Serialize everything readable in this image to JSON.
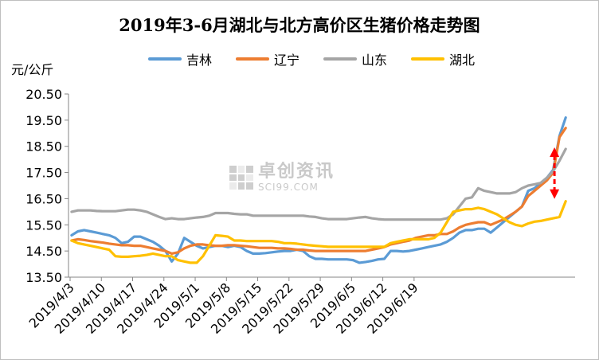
{
  "chart_data": {
    "type": "line",
    "title": "2019年3-6月湖北与北方高价区生猪价格走势图",
    "ylabel": "元/公斤",
    "ylim": [
      13.5,
      20.5
    ],
    "yticks": [
      "20.50",
      "19.50",
      "18.50",
      "17.50",
      "16.50",
      "15.50",
      "14.50",
      "13.50"
    ],
    "xticks": [
      "2019/4/3",
      "2019/4/10",
      "2019/4/17",
      "2019/4/24",
      "2019/5/1",
      "2019/5/8",
      "2019/5/15",
      "2019/5/22",
      "2019/5/29",
      "2019/6/5",
      "2019/6/12",
      "2019/6/19"
    ],
    "x": [
      0,
      1,
      2,
      3,
      4,
      5,
      6,
      7,
      8,
      9,
      10,
      11,
      12,
      13,
      14,
      15,
      16,
      17,
      18,
      19,
      20,
      21,
      22,
      23,
      24,
      25,
      26,
      27,
      28,
      29,
      30,
      31,
      32,
      33,
      34,
      35,
      36,
      37,
      38,
      39,
      40,
      41,
      42,
      43,
      44,
      45,
      46,
      47,
      48,
      49,
      50,
      51,
      52,
      53,
      54,
      55,
      56,
      57,
      58,
      59,
      60,
      61,
      62,
      63,
      64,
      65,
      66,
      67,
      68,
      69,
      70,
      71,
      72,
      73,
      74,
      75,
      76,
      77
    ],
    "legend_position": "top",
    "grid": false,
    "series": [
      {
        "name": "吉林",
        "color": "#5b9bd5",
        "values": [
          15.1,
          15.25,
          15.3,
          15.25,
          15.2,
          15.15,
          15.1,
          15.0,
          14.8,
          14.85,
          15.05,
          15.05,
          14.95,
          14.85,
          14.7,
          14.5,
          14.1,
          14.4,
          15.0,
          14.85,
          14.7,
          14.6,
          14.65,
          14.7,
          14.7,
          14.65,
          14.7,
          14.65,
          14.5,
          14.4,
          14.4,
          14.42,
          14.45,
          14.48,
          14.5,
          14.5,
          14.55,
          14.5,
          14.3,
          14.2,
          14.2,
          14.18,
          14.18,
          14.18,
          14.18,
          14.15,
          14.05,
          14.08,
          14.12,
          14.18,
          14.2,
          14.5,
          14.5,
          14.48,
          14.5,
          14.55,
          14.6,
          14.65,
          14.7,
          14.75,
          14.85,
          15.0,
          15.2,
          15.3,
          15.3,
          15.35,
          15.35,
          15.2,
          15.4,
          15.6,
          15.8,
          16.0,
          16.2,
          16.8,
          16.9,
          17.1,
          17.3,
          17.6
        ]
      },
      {
        "name": "辽宁",
        "color": "#ed7d31",
        "values": [
          14.9,
          14.95,
          14.92,
          14.88,
          14.85,
          14.82,
          14.78,
          14.75,
          14.72,
          14.72,
          14.7,
          14.7,
          14.65,
          14.6,
          14.55,
          14.5,
          14.4,
          14.45,
          14.6,
          14.7,
          14.75,
          14.75,
          14.72,
          14.7,
          14.7,
          14.72,
          14.72,
          14.7,
          14.68,
          14.65,
          14.62,
          14.62,
          14.62,
          14.6,
          14.6,
          14.58,
          14.55,
          14.55,
          14.52,
          14.5,
          14.5,
          14.5,
          14.5,
          14.5,
          14.5,
          14.5,
          14.5,
          14.5,
          14.55,
          14.6,
          14.65,
          14.75,
          14.8,
          14.85,
          14.9,
          15.0,
          15.05,
          15.1,
          15.1,
          15.15,
          15.15,
          15.25,
          15.4,
          15.5,
          15.55,
          15.6,
          15.6,
          15.5,
          15.6,
          15.7,
          15.85,
          16.0,
          16.2,
          16.6,
          16.8,
          17.0,
          17.2,
          17.5
        ]
      },
      {
        "name": "山东",
        "color": "#a5a5a5",
        "values": [
          16.0,
          16.05,
          16.05,
          16.05,
          16.03,
          16.02,
          16.02,
          16.02,
          16.05,
          16.08,
          16.08,
          16.05,
          16.0,
          15.9,
          15.8,
          15.72,
          15.75,
          15.72,
          15.72,
          15.75,
          15.78,
          15.8,
          15.85,
          15.95,
          15.95,
          15.95,
          15.92,
          15.9,
          15.9,
          15.85,
          15.85,
          15.85,
          15.85,
          15.85,
          15.85,
          15.85,
          15.85,
          15.85,
          15.82,
          15.8,
          15.75,
          15.72,
          15.72,
          15.72,
          15.72,
          15.75,
          15.78,
          15.8,
          15.75,
          15.72,
          15.7,
          15.7,
          15.7,
          15.7,
          15.7,
          15.7,
          15.7,
          15.7,
          15.7,
          15.7,
          15.75,
          15.9,
          16.2,
          16.5,
          16.55,
          16.9,
          16.8,
          16.75,
          16.7,
          16.7,
          16.7,
          16.75,
          16.9,
          17.0,
          17.05,
          17.1,
          17.3,
          17.55
        ]
      },
      {
        "name": "湖北",
        "color": "#ffc000",
        "values": [
          14.9,
          14.8,
          14.75,
          14.7,
          14.65,
          14.6,
          14.55,
          14.3,
          14.28,
          14.28,
          14.3,
          14.32,
          14.35,
          14.4,
          14.35,
          14.3,
          14.3,
          14.15,
          14.1,
          14.05,
          14.05,
          14.3,
          14.7,
          15.1,
          15.08,
          15.05,
          14.9,
          14.9,
          14.88,
          14.88,
          14.88,
          14.88,
          14.88,
          14.85,
          14.8,
          14.8,
          14.78,
          14.75,
          14.72,
          14.7,
          14.68,
          14.66,
          14.66,
          14.66,
          14.66,
          14.66,
          14.66,
          14.66,
          14.66,
          14.66,
          14.66,
          14.8,
          14.85,
          14.9,
          14.95,
          14.95,
          14.95,
          14.95,
          15.0,
          15.2,
          15.6,
          16.0,
          16.05,
          16.1,
          16.1,
          16.15,
          16.1,
          16.0,
          15.9,
          15.75,
          15.6,
          15.5,
          15.45,
          15.55,
          15.62,
          15.65,
          15.7,
          15.75
        ]
      }
    ],
    "extra_tail": {
      "x": [
        78,
        79
      ],
      "吉林": [
        18.9,
        19.6
      ],
      "辽宁": [
        18.85,
        19.2
      ],
      "山东": [
        17.95,
        18.4
      ],
      "湖北": [
        15.8,
        16.4
      ]
    },
    "annotation": {
      "type": "double-arrow",
      "color": "#ff0000",
      "x": 77.2,
      "from": 16.55,
      "to": 18.4
    }
  },
  "watermark": {
    "cn": "卓创资讯",
    "en": "SCI99.COM"
  }
}
